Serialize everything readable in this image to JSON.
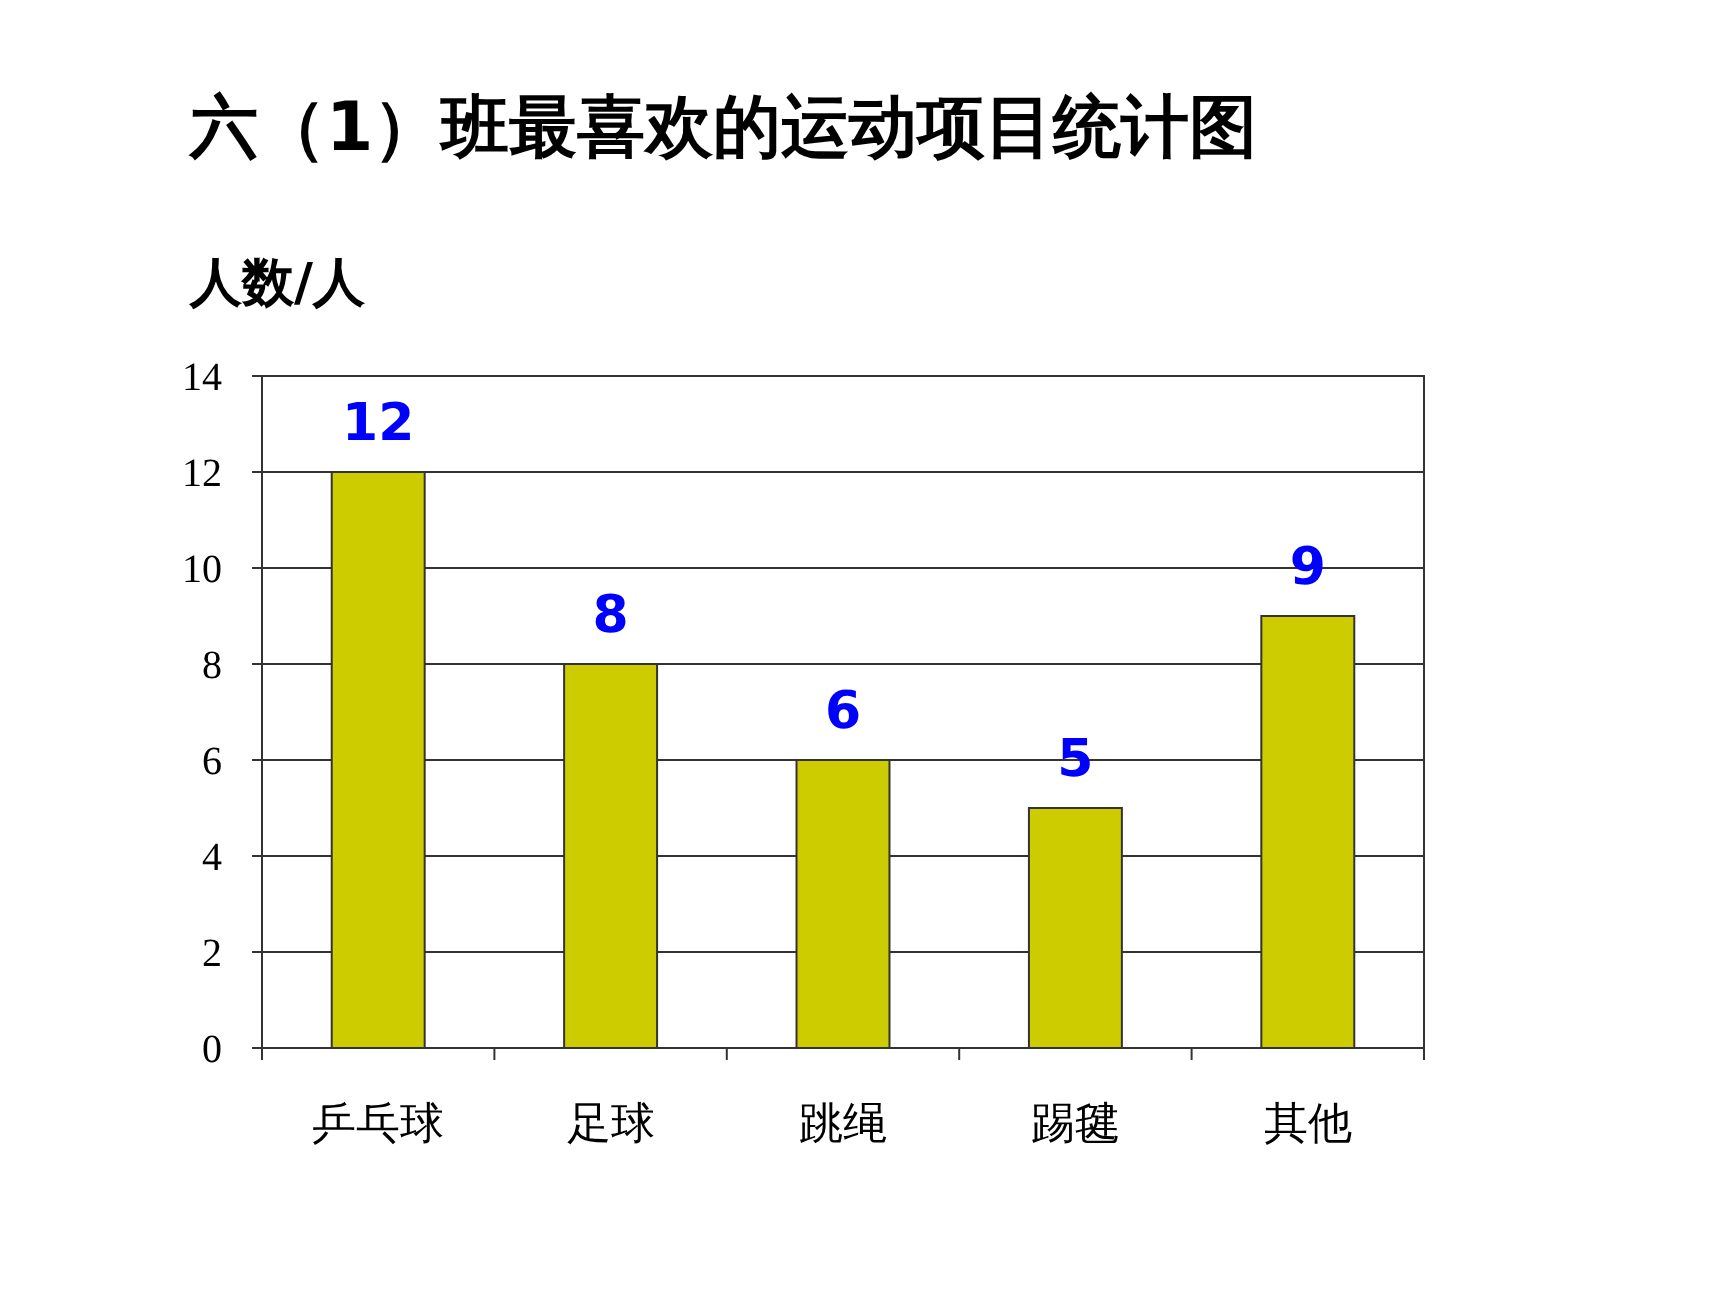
{
  "chart_data": {
    "type": "bar",
    "title": "六（1）班最喜欢的运动项目统计图",
    "ylabel": "人数/人",
    "categories": [
      "乒乓球",
      "足球",
      "跳绳",
      "踢毽",
      "其他"
    ],
    "values": [
      12,
      8,
      6,
      5,
      9
    ],
    "color": "#cccc00",
    "ylim": [
      0,
      14
    ],
    "yticks": [
      0,
      2,
      4,
      6,
      8,
      10,
      12,
      14
    ],
    "grid": "y",
    "data_labels": true
  }
}
